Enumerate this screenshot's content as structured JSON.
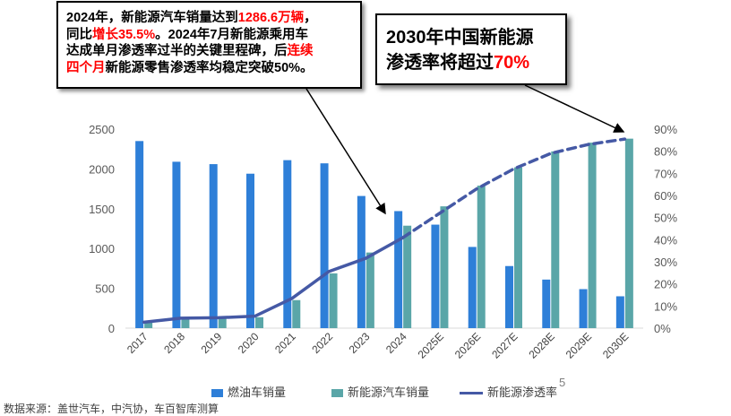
{
  "chart_data": {
    "type": "bar",
    "categories": [
      "2017",
      "2018",
      "2019",
      "2020",
      "2021",
      "2022",
      "2023",
      "2024",
      "2025E",
      "2026E",
      "2027E",
      "2028E",
      "2029E",
      "2030E"
    ],
    "series": [
      {
        "name": "燃油车销量",
        "type": "bar",
        "axis": "left",
        "color": "#2e7fd8",
        "values": [
          2350,
          2090,
          2060,
          1940,
          2110,
          2070,
          1660,
          1470,
          1300,
          1020,
          780,
          610,
          490,
          400
        ]
      },
      {
        "name": "新能源汽车销量",
        "type": "bar",
        "axis": "left",
        "color": "#5aa6a8",
        "values": [
          80,
          125,
          120,
          137,
          352,
          688,
          950,
          1287,
          1530,
          1790,
          2020,
          2220,
          2330,
          2380
        ]
      },
      {
        "name": "新能源渗透率",
        "type": "line",
        "axis": "right",
        "color": "#4559a5",
        "values": [
          2.7,
          4.5,
          4.7,
          5.4,
          13.4,
          25.6,
          31.6,
          40.9,
          null,
          null,
          null,
          null,
          null,
          null
        ]
      },
      {
        "name": "新能源渗透率",
        "type": "line-dashed",
        "axis": "right",
        "color": "#4559a5",
        "values": [
          null,
          null,
          null,
          null,
          null,
          null,
          null,
          40.9,
          52,
          63,
          72,
          79,
          83,
          85.5
        ]
      }
    ],
    "y_left": {
      "min": 0,
      "max": 2500,
      "ticks": [
        "0",
        "500",
        "1000",
        "1500",
        "2000",
        "2500"
      ]
    },
    "y_right": {
      "min": 0,
      "max": 90,
      "ticks": [
        "0%",
        "10%",
        "20%",
        "30%",
        "40%",
        "50%",
        "60%",
        "70%",
        "80%",
        "90%"
      ]
    },
    "grid": false,
    "legend_position": "bottom"
  },
  "callouts": {
    "left": {
      "line1_a": "2024年，新能源汽车销量达到",
      "line1_red": "1286.6万辆",
      "line1_b": "，",
      "line2_a": "同比",
      "line2_red": "增长35.5%",
      "line2_b": "。2024年7月新能源乘用车",
      "line3": "达成单月渗透率过半的关键里程碑，后",
      "line3_red": "连续",
      "line4_red": "四个月",
      "line4_b": "新能源零售渗透率均稳定突破50%。"
    },
    "right": {
      "line1": "2030年中国新能源",
      "line2_a": "渗透率将超过",
      "line2_red": "70%"
    }
  },
  "legend": {
    "fuel": "燃油车销量",
    "nev": "新能源汽车销量",
    "rate": "新能源渗透率"
  },
  "page_number": "5",
  "source": "数据来源：盖世汽车，中汽协，车百智库测算"
}
